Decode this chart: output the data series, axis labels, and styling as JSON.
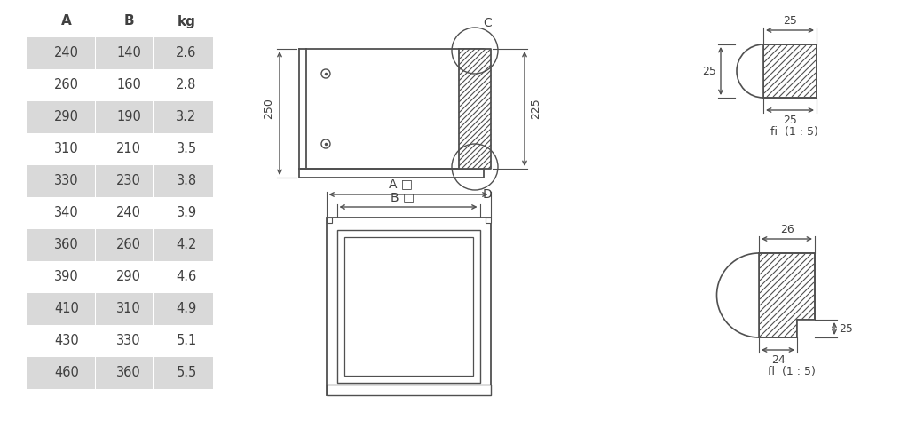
{
  "table_headers": [
    "A",
    "B",
    "kg"
  ],
  "table_data": [
    [
      240,
      140,
      2.6
    ],
    [
      260,
      160,
      2.8
    ],
    [
      290,
      190,
      3.2
    ],
    [
      310,
      210,
      3.5
    ],
    [
      330,
      230,
      3.8
    ],
    [
      340,
      240,
      3.9
    ],
    [
      360,
      260,
      4.2
    ],
    [
      390,
      290,
      4.6
    ],
    [
      410,
      310,
      4.9
    ],
    [
      430,
      330,
      5.1
    ],
    [
      460,
      360,
      5.5
    ]
  ],
  "row_bg_odd": "#d9d9d9",
  "row_bg_even": "#ffffff",
  "text_color": "#404040",
  "line_color": "#505050",
  "hatch_color": "#505050",
  "bg_color": "#ffffff"
}
